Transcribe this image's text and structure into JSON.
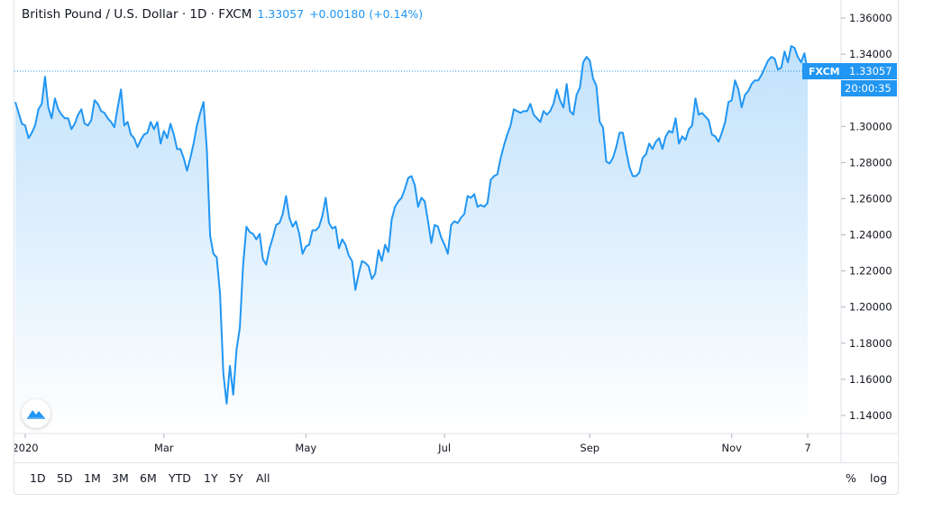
{
  "legend": {
    "symbol": "British Pound / U.S. Dollar · 1D · FXCM",
    "last": "1.33057",
    "change": "+0.00180 (+0.14%)"
  },
  "price_label": {
    "source": "FXCM",
    "price": "1.33057",
    "countdown": "20:00:35"
  },
  "range_buttons": [
    "1D",
    "5D",
    "1M",
    "3M",
    "6M",
    "YTD",
    "1Y",
    "5Y",
    "All"
  ],
  "scale_buttons": [
    "%",
    "log"
  ],
  "colors": {
    "line": "#2196f3",
    "label_bg": "#2196f3",
    "text": "#131722",
    "axis_text": "#131722"
  },
  "chart_data": {
    "type": "area",
    "title": "British Pound / U.S. Dollar · 1D · FXCM",
    "ylim": [
      1.13,
      1.37
    ],
    "y_ticks": [
      1.14,
      1.16,
      1.18,
      1.2,
      1.22,
      1.24,
      1.26,
      1.28,
      1.3,
      1.32,
      1.34,
      1.36
    ],
    "y_tick_labels": [
      "1.14000",
      "1.16000",
      "1.18000",
      "1.20000",
      "1.22000",
      "1.24000",
      "1.26000",
      "1.28000",
      "1.30000",
      "1.32000",
      "1.34000",
      "1.36000"
    ],
    "x_ticks": [
      {
        "label": "2020",
        "i": 3
      },
      {
        "label": "Mar",
        "i": 45
      },
      {
        "label": "May",
        "i": 88
      },
      {
        "label": "Jul",
        "i": 130
      },
      {
        "label": "Sep",
        "i": 174
      },
      {
        "label": "Nov",
        "i": 217
      },
      {
        "label": "7",
        "i": 240
      }
    ],
    "last_value": 1.33057,
    "series": [
      {
        "values": [
          1.3135,
          1.3075,
          1.3015,
          1.3005,
          1.2935,
          1.2965,
          1.3005,
          1.3095,
          1.3125,
          1.3275,
          1.3105,
          1.3045,
          1.3155,
          1.3095,
          1.3065,
          1.3045,
          1.3045,
          1.2985,
          1.3015,
          1.3065,
          1.3095,
          1.3015,
          1.3005,
          1.3035,
          1.3145,
          1.3125,
          1.3085,
          1.3075,
          1.3045,
          1.3025,
          1.2995,
          1.3105,
          1.3205,
          1.3005,
          1.3025,
          1.2955,
          1.2935,
          1.2885,
          1.2925,
          1.2955,
          1.2965,
          1.3025,
          1.2985,
          1.3025,
          1.2905,
          1.2975,
          1.2935,
          1.3015,
          1.2955,
          1.2875,
          1.2875,
          1.2825,
          1.2755,
          1.2825,
          1.2905,
          1.3005,
          1.3075,
          1.3135,
          1.2875,
          1.2395,
          1.2295,
          1.2275,
          1.2075,
          1.1635,
          1.1465,
          1.1675,
          1.1515,
          1.1765,
          1.1885,
          1.2235,
          1.2445,
          1.2415,
          1.2405,
          1.2375,
          1.2405,
          1.2265,
          1.2235,
          1.2325,
          1.2385,
          1.2455,
          1.2465,
          1.2515,
          1.2615,
          1.2495,
          1.2445,
          1.2475,
          1.2405,
          1.2295,
          1.2335,
          1.2345,
          1.2425,
          1.2425,
          1.2445,
          1.2505,
          1.2605,
          1.2465,
          1.2435,
          1.2445,
          1.2325,
          1.2375,
          1.2345,
          1.2285,
          1.2255,
          1.2095,
          1.2185,
          1.2255,
          1.2245,
          1.2225,
          1.2155,
          1.2185,
          1.2315,
          1.2255,
          1.2345,
          1.2305,
          1.2485,
          1.2555,
          1.2585,
          1.2605,
          1.2655,
          1.2715,
          1.2725,
          1.2675,
          1.2555,
          1.2605,
          1.2585,
          1.2475,
          1.2355,
          1.2455,
          1.2445,
          1.2385,
          1.2345,
          1.2295,
          1.2455,
          1.2475,
          1.2465,
          1.2495,
          1.2515,
          1.2615,
          1.2605,
          1.2625,
          1.2555,
          1.2565,
          1.2555,
          1.2575,
          1.2705,
          1.2725,
          1.2735,
          1.2825,
          1.2895,
          1.2955,
          1.3005,
          1.3095,
          1.3085,
          1.3075,
          1.3085,
          1.3085,
          1.3125,
          1.3065,
          1.3045,
          1.3025,
          1.3085,
          1.3065,
          1.3085,
          1.3125,
          1.3205,
          1.3145,
          1.3105,
          1.3235,
          1.3085,
          1.3065,
          1.3175,
          1.3215,
          1.3355,
          1.3385,
          1.3365,
          1.3265,
          1.3225,
          1.3025,
          1.2995,
          1.2805,
          1.2795,
          1.2825,
          1.2885,
          1.2965,
          1.2965,
          1.2865,
          1.2775,
          1.2725,
          1.2725,
          1.2745,
          1.2825,
          1.2845,
          1.2905,
          1.2875,
          1.2915,
          1.2935,
          1.2875,
          1.2945,
          1.2975,
          1.2965,
          1.3045,
          1.2905,
          1.2945,
          1.2925,
          1.2985,
          1.3005,
          1.3155,
          1.3065,
          1.3075,
          1.3055,
          1.3035,
          1.2955,
          1.2945,
          1.2915,
          1.2965,
          1.3025,
          1.3135,
          1.3145,
          1.3255,
          1.3205,
          1.3105,
          1.3175,
          1.3195,
          1.3235,
          1.3255,
          1.3255,
          1.3285,
          1.3325,
          1.3365,
          1.3385,
          1.3375,
          1.3315,
          1.3325,
          1.3415,
          1.3355,
          1.3445,
          1.3435,
          1.3385,
          1.3355,
          1.3405,
          1.33057
        ]
      }
    ]
  }
}
